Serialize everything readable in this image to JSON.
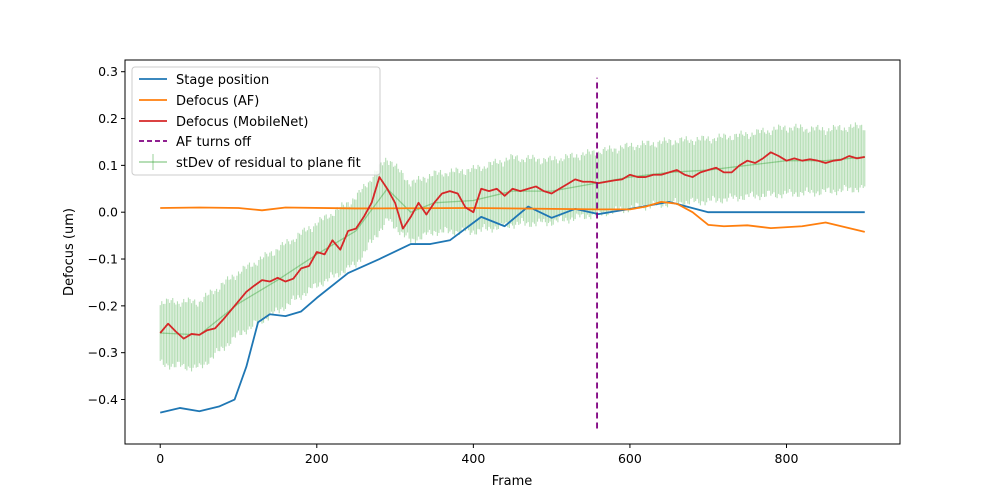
{
  "chart_data": {
    "type": "line",
    "title": "",
    "xlabel": "Frame",
    "ylabel": "Defocus (um)",
    "xlim": [
      -45,
      945
    ],
    "ylim": [
      -0.495,
      0.325
    ],
    "xticks": [
      0,
      200,
      400,
      600,
      800
    ],
    "yticks": [
      -0.4,
      -0.3,
      -0.2,
      -0.1,
      0.0,
      0.1,
      0.2,
      0.3
    ],
    "xtick_labels": [
      "0",
      "200",
      "400",
      "600",
      "800"
    ],
    "ytick_labels": [
      "−0.4",
      "−0.3",
      "−0.2",
      "−0.1",
      "0.0",
      "0.1",
      "0.2",
      "0.3"
    ],
    "grid": false,
    "legend_position": "upper-left",
    "series": [
      {
        "name": "Stage position",
        "color": "#1f77b4",
        "style": "solid",
        "x": [
          0,
          25,
          50,
          75,
          95,
          110,
          125,
          140,
          160,
          180,
          200,
          240,
          280,
          320,
          345,
          370,
          410,
          440,
          470,
          500,
          530,
          560,
          600,
          650,
          700,
          900
        ],
        "y": [
          -0.428,
          -0.418,
          -0.425,
          -0.415,
          -0.4,
          -0.33,
          -0.235,
          -0.218,
          -0.222,
          -0.212,
          -0.183,
          -0.13,
          -0.1,
          -0.068,
          -0.068,
          -0.06,
          -0.01,
          -0.03,
          0.012,
          -0.012,
          0.007,
          -0.004,
          0.007,
          0.022,
          0.0,
          0.0
        ]
      },
      {
        "name": "Defocus (AF)",
        "color": "#ff7f0e",
        "style": "solid",
        "x": [
          0,
          50,
          100,
          130,
          160,
          250,
          400,
          560,
          600,
          620,
          640,
          660,
          680,
          700,
          720,
          750,
          780,
          820,
          850,
          880,
          900
        ],
        "y": [
          0.009,
          0.01,
          0.009,
          0.004,
          0.01,
          0.008,
          0.009,
          0.006,
          0.006,
          0.012,
          0.022,
          0.018,
          0.0,
          -0.027,
          -0.03,
          -0.028,
          -0.034,
          -0.03,
          -0.022,
          -0.034,
          -0.042
        ]
      },
      {
        "name": "Defocus (MobileNet)",
        "color": "#d62728",
        "style": "solid",
        "x": [
          0,
          10,
          20,
          30,
          40,
          50,
          60,
          70,
          80,
          90,
          100,
          110,
          120,
          130,
          140,
          150,
          160,
          170,
          180,
          190,
          200,
          210,
          220,
          230,
          240,
          250,
          260,
          270,
          280,
          290,
          300,
          310,
          320,
          330,
          340,
          350,
          360,
          370,
          380,
          390,
          400,
          410,
          420,
          430,
          440,
          450,
          460,
          470,
          480,
          490,
          500,
          510,
          520,
          530,
          540,
          550,
          560,
          570,
          580,
          590,
          600,
          610,
          620,
          630,
          640,
          650,
          660,
          670,
          680,
          690,
          700,
          710,
          720,
          730,
          740,
          750,
          760,
          770,
          780,
          790,
          800,
          810,
          820,
          830,
          840,
          850,
          860,
          870,
          880,
          890,
          900
        ],
        "y": [
          -0.258,
          -0.238,
          -0.255,
          -0.27,
          -0.26,
          -0.262,
          -0.252,
          -0.248,
          -0.23,
          -0.21,
          -0.19,
          -0.17,
          -0.157,
          -0.145,
          -0.148,
          -0.14,
          -0.148,
          -0.142,
          -0.12,
          -0.115,
          -0.085,
          -0.09,
          -0.06,
          -0.08,
          -0.04,
          -0.035,
          -0.01,
          0.02,
          0.075,
          0.05,
          0.02,
          -0.035,
          -0.01,
          0.02,
          -0.005,
          0.02,
          0.04,
          0.045,
          0.04,
          0.01,
          0.0,
          0.05,
          0.045,
          0.05,
          0.035,
          0.05,
          0.045,
          0.05,
          0.055,
          0.045,
          0.04,
          0.05,
          0.06,
          0.07,
          0.065,
          0.065,
          0.062,
          0.065,
          0.068,
          0.07,
          0.08,
          0.075,
          0.075,
          0.08,
          0.08,
          0.085,
          0.09,
          0.08,
          0.075,
          0.085,
          0.09,
          0.095,
          0.085,
          0.085,
          0.1,
          0.11,
          0.105,
          0.115,
          0.128,
          0.12,
          0.11,
          0.115,
          0.11,
          0.113,
          0.11,
          0.105,
          0.11,
          0.112,
          0.12,
          0.115,
          0.118
        ]
      },
      {
        "name": "AF turns off",
        "color": "#800080",
        "style": "dashed",
        "x": [
          558,
          558
        ],
        "y": [
          -0.462,
          0.287
        ]
      },
      {
        "name": "stDev of residual to plane fit",
        "color": "#2ca02c",
        "style": "errorbar",
        "x": [
          0,
          50,
          100,
          150,
          200,
          250,
          290,
          320,
          350,
          400,
          450,
          500,
          550,
          600,
          650,
          700,
          750,
          800,
          850,
          900
        ],
        "y": [
          -0.258,
          -0.262,
          -0.195,
          -0.145,
          -0.09,
          -0.04,
          0.05,
          0.0,
          0.02,
          0.025,
          0.045,
          0.045,
          0.06,
          0.075,
          0.085,
          0.09,
          0.1,
          0.11,
          0.11,
          0.118
        ],
        "err": [
          0.07,
          0.075,
          0.07,
          0.07,
          0.07,
          0.075,
          0.07,
          0.065,
          0.065,
          0.07,
          0.075,
          0.07,
          0.07,
          0.07,
          0.07,
          0.07,
          0.07,
          0.075,
          0.07,
          0.07
        ]
      }
    ]
  }
}
